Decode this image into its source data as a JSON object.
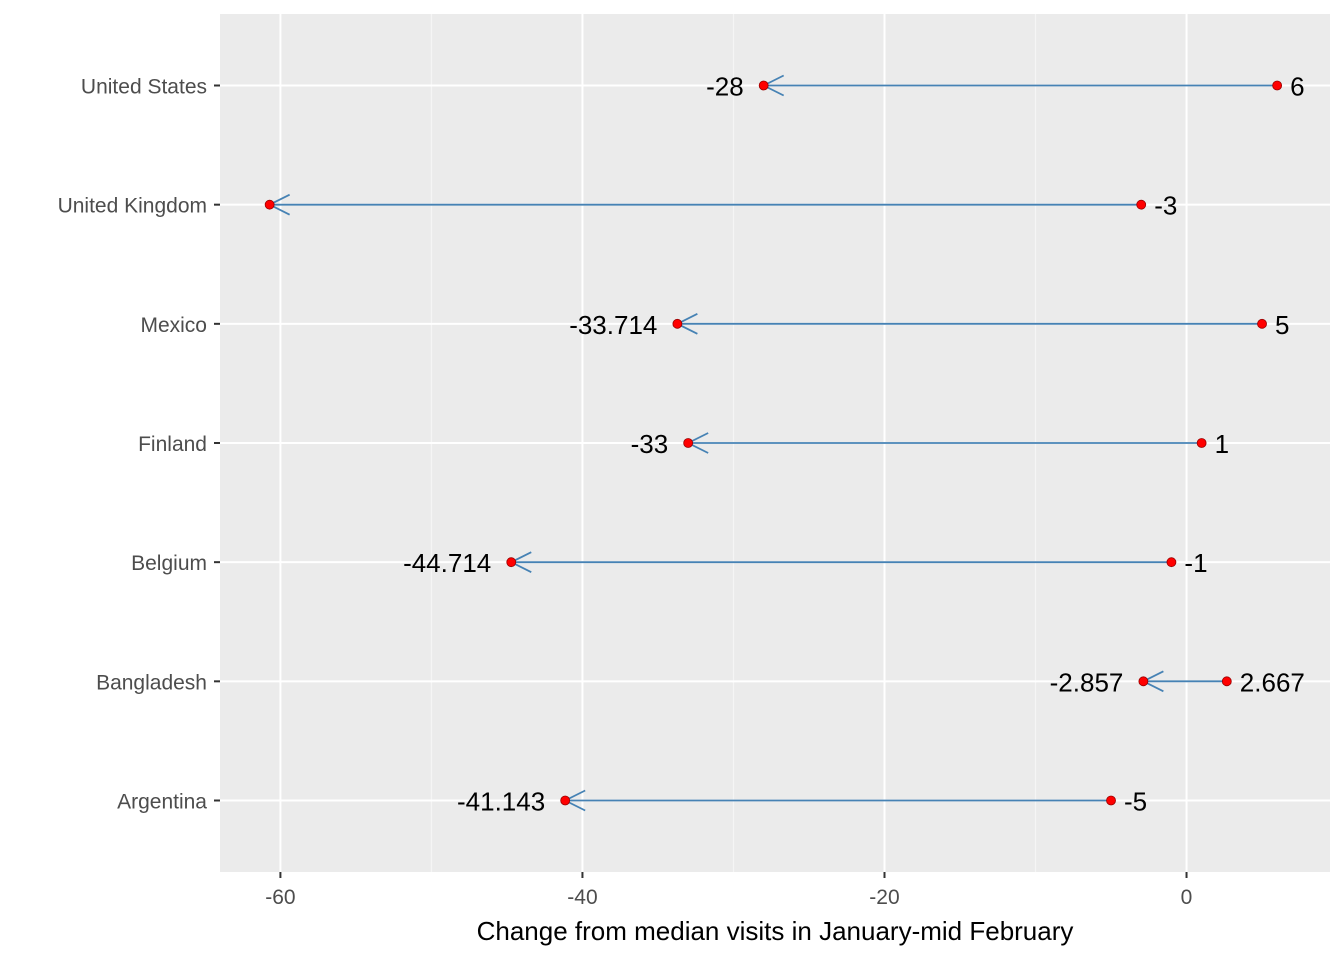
{
  "chart_data": {
    "type": "dumbbell-arrow",
    "xlabel": "Change from median visits in January-mid February",
    "ylabel": "",
    "xlim": [
      -64,
      9.5
    ],
    "x_ticks": [
      -60,
      -40,
      -20,
      0
    ],
    "x_tick_labels": [
      "-60",
      "-40",
      "-20",
      "0"
    ],
    "grid": true,
    "categories": [
      "United States",
      "United Kingdom",
      "Mexico",
      "Finland",
      "Belgium",
      "Bangladesh",
      "Argentina"
    ],
    "series": [
      {
        "role": "start",
        "values": [
          6,
          -3,
          5,
          1,
          -1,
          2.667,
          -5
        ],
        "labels": [
          "6",
          "-3",
          "5",
          "1",
          "-1",
          "2.667",
          "-5"
        ]
      },
      {
        "role": "end",
        "values": [
          -28,
          -60.714,
          -33.714,
          -33,
          -44.714,
          -2.857,
          -41.143
        ],
        "labels": [
          "-28",
          "",
          "-33.714",
          "-33",
          "-44.714",
          "-2.857",
          "-41.143"
        ]
      }
    ],
    "colors": {
      "arrow": "#4682b4",
      "point": "#ff0000",
      "panel": "#ebebeb",
      "grid_major": "#ffffff",
      "grid_minor": "#f5f5f5"
    }
  }
}
